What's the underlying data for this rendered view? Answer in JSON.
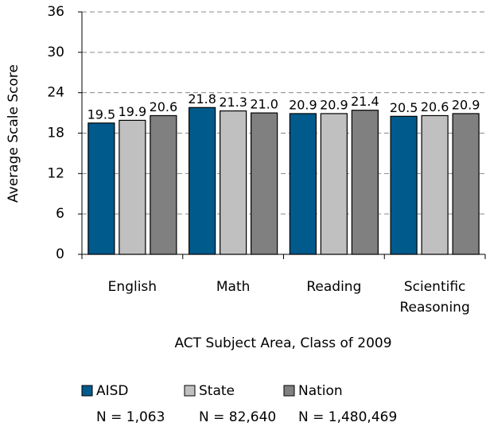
{
  "chart_data": {
    "type": "bar",
    "y_label": "Average Scale Score",
    "x_label": "ACT Subject Area, Class of 2009",
    "categories": [
      "English",
      "Math",
      "Reading",
      "Scientific Reasoning"
    ],
    "series": [
      {
        "name": "AISD",
        "n_label": "N = 1,063",
        "color": "#005a8c",
        "values": [
          19.5,
          21.8,
          20.9,
          20.5
        ],
        "value_labels": [
          "19.5",
          "21.8",
          "20.9",
          "20.5"
        ]
      },
      {
        "name": "State",
        "n_label": "N = 82,640",
        "color": "#c0c0c0",
        "values": [
          19.9,
          21.3,
          20.9,
          20.6
        ],
        "value_labels": [
          "19.9",
          "21.3",
          "20.9",
          "20.6"
        ]
      },
      {
        "name": "Nation",
        "n_label": "N = 1,480,469",
        "color": "#808080",
        "values": [
          20.6,
          21.0,
          21.4,
          20.9
        ],
        "value_labels": [
          "20.6",
          "21.0",
          "21.4",
          "20.9"
        ]
      }
    ],
    "ylim": [
      0,
      36
    ],
    "yticks": [
      0,
      6,
      12,
      18,
      24,
      30,
      36
    ],
    "grid": true
  }
}
